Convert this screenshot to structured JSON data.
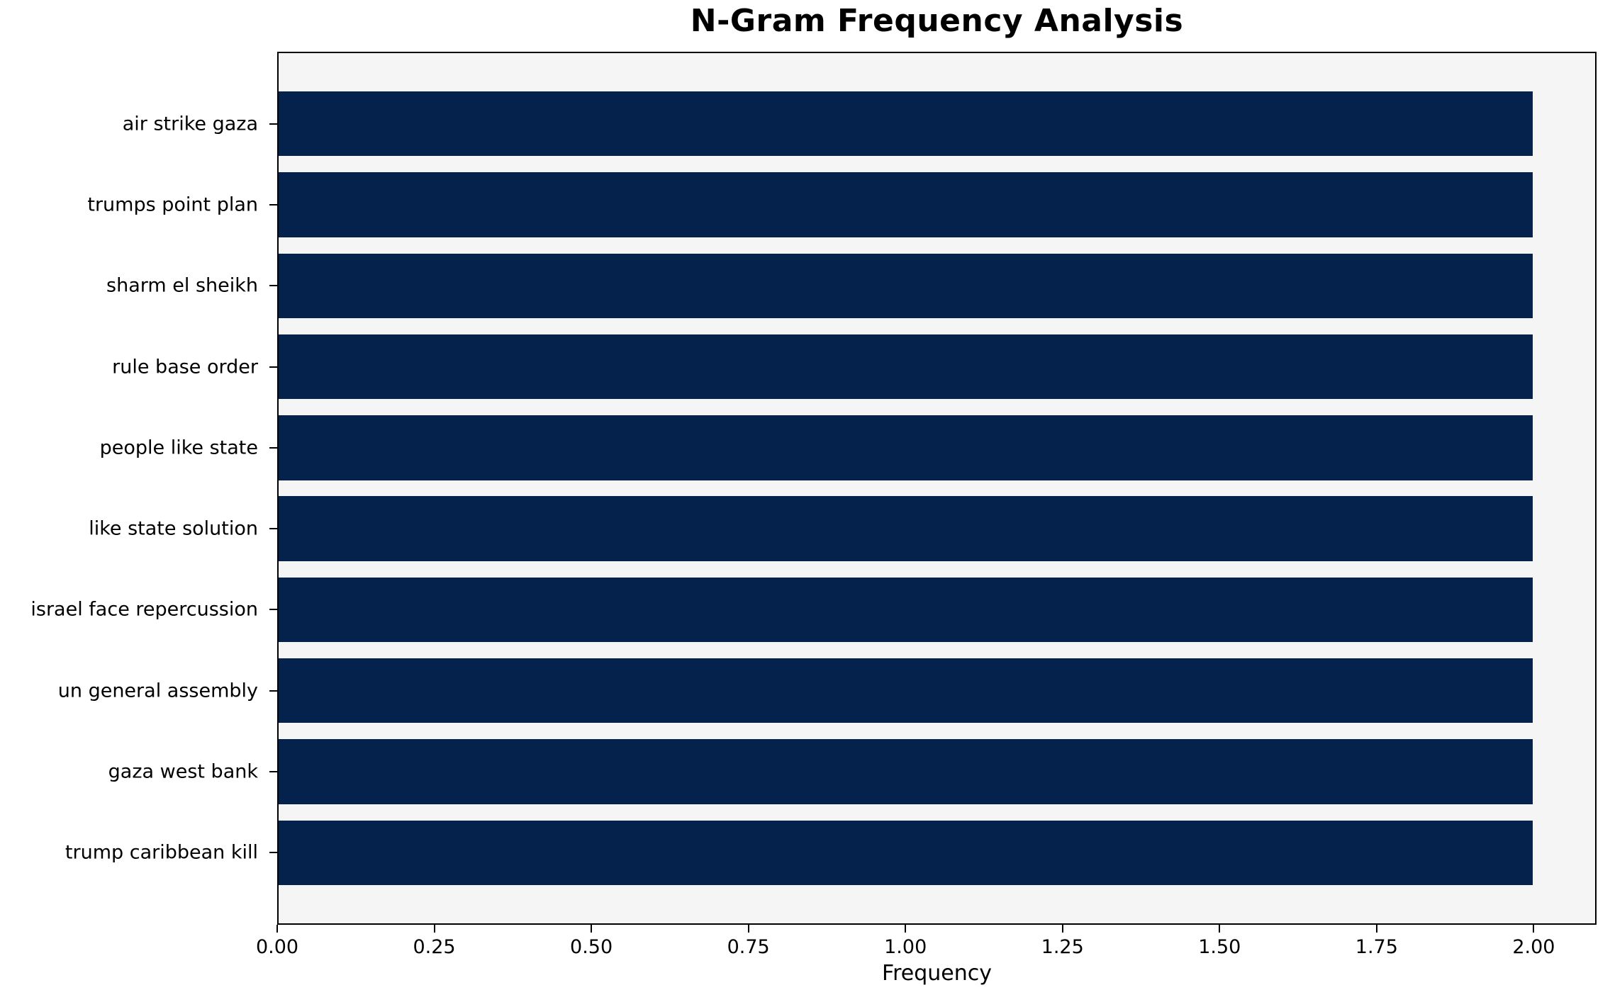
{
  "chart_data": {
    "type": "bar",
    "orientation": "horizontal",
    "title": "N-Gram Frequency Analysis",
    "xlabel": "Frequency",
    "ylabel": "",
    "categories": [
      "air strike gaza",
      "trumps point plan",
      "sharm el sheikh",
      "rule base order",
      "people like state",
      "like state solution",
      "israel face repercussion",
      "un general assembly",
      "gaza west bank",
      "trump caribbean kill"
    ],
    "values": [
      2,
      2,
      2,
      2,
      2,
      2,
      2,
      2,
      2,
      2
    ],
    "xlim": [
      0,
      2.1
    ],
    "x_tick_values": [
      0,
      0.25,
      0.5,
      0.75,
      1.0,
      1.25,
      1.5,
      1.75,
      2.0
    ],
    "x_tick_labels": [
      "0.00",
      "0.25",
      "0.50",
      "0.75",
      "1.00",
      "1.25",
      "1.50",
      "1.75",
      "2.00"
    ],
    "grid": false,
    "legend": false,
    "bar_color": "#04224c",
    "plot_background": "#f5f5f5",
    "figure_background": "#ffffff"
  }
}
